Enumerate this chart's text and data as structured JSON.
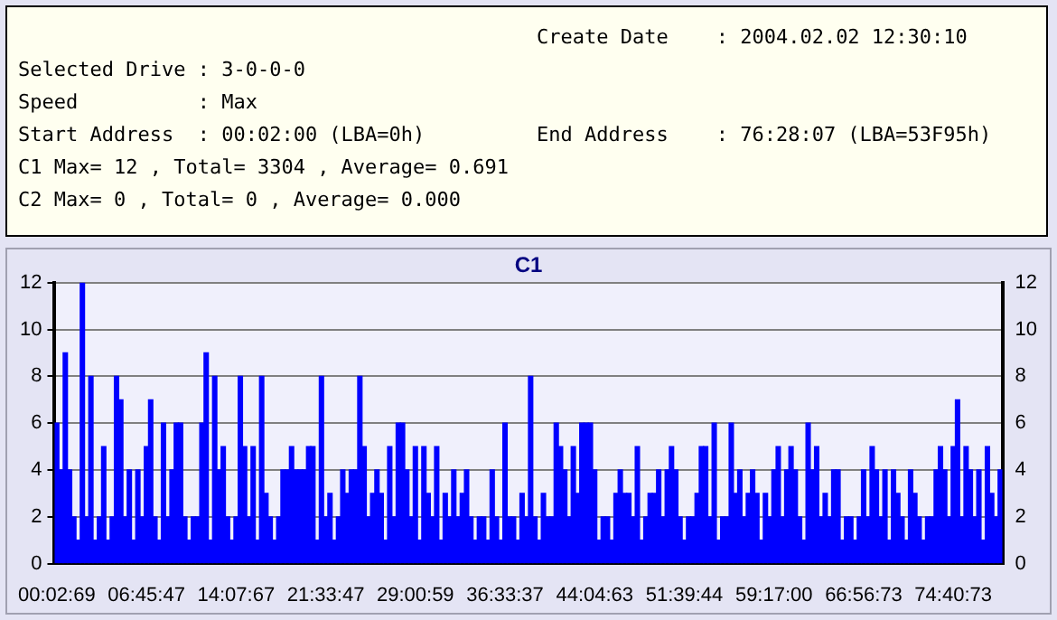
{
  "chart_data": {
    "type": "bar",
    "title": "C1",
    "annotations": [
      "Create Date    : 2004.02.02 12:30:10",
      "Selected Drive : 3-0-0-0",
      "Speed          : Max",
      "Start Address  : 00:02:00 (LBA=0h)",
      "End Address    : 76:28:07 (LBA=53F95h)",
      "C1 Max= 12 , Total= 3304 , Average= 0.691",
      "C2 Max= 0 , Total= 0 , Average= 0.000"
    ],
    "categories": [
      "00:02:69",
      null,
      null,
      null,
      null,
      null,
      null,
      null,
      null,
      null,
      null,
      null,
      null,
      null,
      null,
      null,
      null,
      null,
      null,
      null,
      null,
      "06:45:47",
      null,
      null,
      null,
      null,
      null,
      null,
      null,
      null,
      null,
      null,
      null,
      null,
      null,
      null,
      null,
      null,
      null,
      null,
      null,
      null,
      "14:07:67",
      null,
      null,
      null,
      null,
      null,
      null,
      null,
      null,
      null,
      null,
      null,
      null,
      null,
      null,
      null,
      null,
      null,
      null,
      null,
      null,
      "21:33:47",
      null,
      null,
      null,
      null,
      null,
      null,
      null,
      null,
      null,
      null,
      null,
      null,
      null,
      null,
      null,
      null,
      null,
      null,
      null,
      null,
      "29:00:59",
      null,
      null,
      null,
      null,
      null,
      null,
      null,
      null,
      null,
      null,
      null,
      null,
      null,
      null,
      null,
      null,
      null,
      null,
      null,
      null,
      "36:33:37",
      null,
      null,
      null,
      null,
      null,
      null,
      null,
      null,
      null,
      null,
      null,
      null,
      null,
      null,
      null,
      null,
      null,
      null,
      null,
      null,
      "44:04:63",
      null,
      null,
      null,
      null,
      null,
      null,
      null,
      null,
      null,
      null,
      null,
      null,
      null,
      null,
      null,
      null,
      null,
      null,
      null,
      null,
      "51:39:44",
      null,
      null,
      null,
      null,
      null,
      null,
      null,
      null,
      null,
      null,
      null,
      null,
      null,
      null,
      null,
      null,
      null,
      null,
      null,
      null,
      "59:17:00",
      null,
      null,
      null,
      null,
      null,
      null,
      null,
      null,
      null,
      null,
      null,
      null,
      null,
      null,
      null,
      null,
      null,
      null,
      null,
      null,
      "66:56:73",
      null,
      null,
      null,
      null,
      null,
      null,
      null,
      null,
      null,
      null,
      null,
      null,
      null,
      null,
      null,
      null,
      null,
      null,
      null,
      null,
      "74:40:73",
      null,
      null,
      null,
      null,
      null,
      null,
      null,
      null,
      null,
      null,
      null
    ],
    "series": [
      {
        "color": "#0000ff",
        "values": [
          6,
          4,
          9,
          4,
          2,
          1,
          12,
          2,
          8,
          1,
          2,
          5,
          1,
          2,
          8,
          7,
          2,
          4,
          1,
          4,
          2,
          5,
          7,
          2,
          1,
          6,
          2,
          4,
          6,
          6,
          2,
          1,
          2,
          2,
          6,
          9,
          1,
          8,
          4,
          5,
          2,
          1,
          2,
          8,
          5,
          2,
          5,
          1,
          8,
          3,
          2,
          1,
          2,
          4,
          4,
          5,
          4,
          4,
          4,
          5,
          5,
          1,
          8,
          2,
          3,
          1,
          2,
          4,
          3,
          4,
          4,
          8,
          5,
          2,
          3,
          4,
          3,
          1,
          5,
          2,
          6,
          6,
          4,
          2,
          5,
          1,
          5,
          3,
          2,
          5,
          1,
          3,
          2,
          4,
          2,
          3,
          4,
          2,
          1,
          2,
          2,
          1,
          4,
          2,
          1,
          6,
          2,
          2,
          1,
          3,
          2,
          8,
          2,
          1,
          3,
          2,
          2,
          6,
          5,
          4,
          2,
          5,
          3,
          6,
          6,
          6,
          4,
          1,
          2,
          2,
          1,
          3,
          4,
          3,
          3,
          2,
          5,
          1,
          2,
          3,
          3,
          4,
          2,
          4,
          5,
          4,
          2,
          1,
          2,
          2,
          3,
          5,
          5,
          2,
          6,
          1,
          2,
          2,
          6,
          3,
          4,
          2,
          3,
          4,
          3,
          1,
          3,
          2,
          4,
          5,
          2,
          4,
          5,
          4,
          2,
          1,
          6,
          4,
          5,
          2,
          3,
          2,
          4,
          4,
          1,
          2,
          2,
          1,
          2,
          4,
          2,
          5,
          4,
          2,
          4,
          1,
          4,
          3,
          2,
          1,
          4,
          3,
          2,
          1,
          2,
          2,
          4,
          5,
          4,
          2,
          5,
          7,
          2,
          5,
          4,
          2,
          4,
          1,
          5,
          3,
          2,
          4
        ]
      }
    ],
    "ylim": [
      0,
      12
    ],
    "yticks": [
      0,
      2,
      4,
      6,
      8,
      10,
      12
    ],
    "y2lim": [
      0,
      12
    ],
    "y2ticks": [
      0,
      2,
      4,
      6,
      8,
      10,
      12
    ],
    "grid": "y",
    "legend": false
  }
}
